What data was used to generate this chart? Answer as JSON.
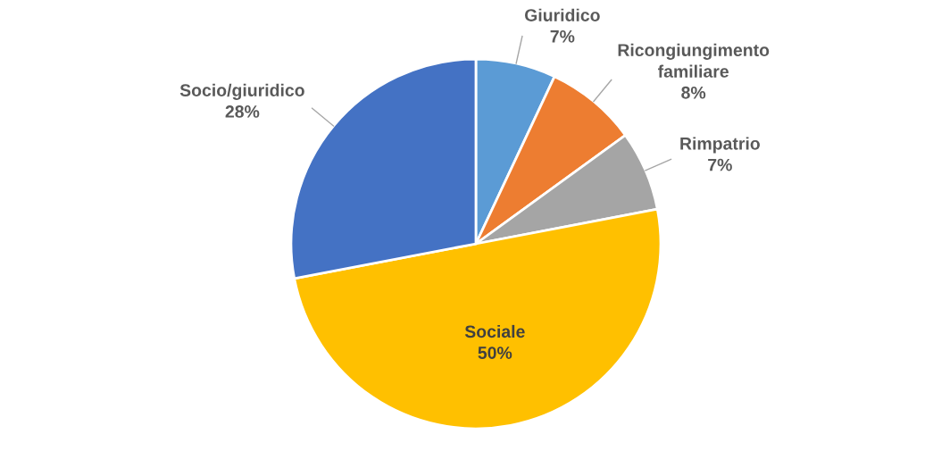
{
  "chart_data": {
    "type": "pie",
    "categories": [
      "Giuridico",
      "Ricongiungimento\nfamiliare",
      "Rimpatrio",
      "Sociale",
      "Socio/giuridico"
    ],
    "values": [
      7,
      8,
      7,
      50,
      28
    ],
    "value_labels": [
      "7%",
      "8%",
      "7%",
      "50%",
      "28%"
    ],
    "colors": [
      "#5b9bd5",
      "#ed7d31",
      "#a5a5a5",
      "#ffc000",
      "#4472c4"
    ],
    "legend": false
  }
}
